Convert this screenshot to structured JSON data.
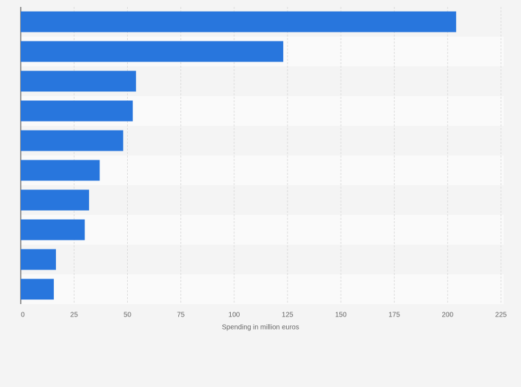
{
  "chart_data": {
    "type": "bar",
    "orientation": "horizontal",
    "categories": [
      null,
      null,
      null,
      null,
      null,
      null,
      null,
      null,
      null,
      null
    ],
    "values": [
      204,
      123,
      54,
      52.5,
      48,
      37,
      32,
      30,
      16.5,
      15.5
    ],
    "color": "#2876dd",
    "x_label": "Spending in million euros",
    "xlim": [
      0,
      225
    ],
    "xticks": [
      0,
      25,
      50,
      75,
      100,
      125,
      150,
      175,
      200,
      225
    ],
    "grid": true
  }
}
